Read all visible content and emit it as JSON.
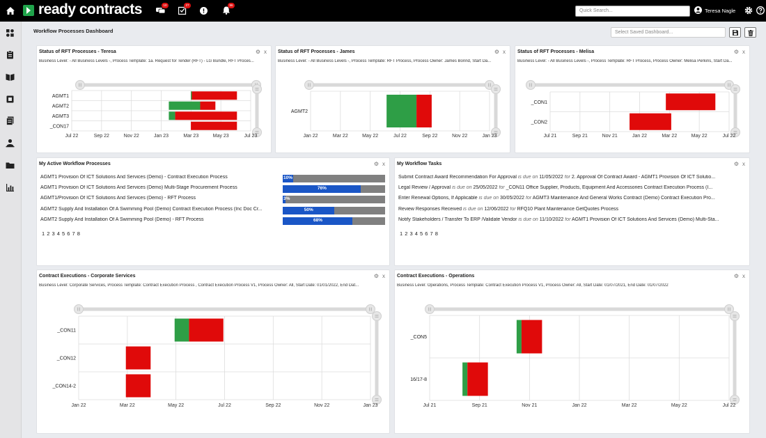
{
  "app": {
    "logo_text": "ready contracts",
    "quick_search_placeholder": "Quick Search...",
    "user_name": "Teresa Nagle",
    "badges": {
      "chat": "10",
      "tasks": "27",
      "alerts": "96"
    }
  },
  "dashboard": {
    "title": "Workflow Processes Dashboard",
    "saved_placeholder": "Select Saved Dashboard..."
  },
  "panels": {
    "teresa": {
      "title": "Status of RFT Processes - Teresa",
      "subtitle": "Business Level: - All Business Levels -, Process Template: 1a. Request for Tender (RFT) - LG Bundle, RFT Proces..."
    },
    "james": {
      "title": "Status of RFT Processes - James",
      "subtitle": "Business Level: - All Business Levels -, Process Template: RFT Process, Process Owner: James Bonnd, Start Da..."
    },
    "melisa": {
      "title": "Status of RFT Processes - Melisa",
      "subtitle": "Business Level: - All Business Levels -, Process Template: RFT Process, Process Owner: Melisa Perkins, Start Da..."
    },
    "active": {
      "title": "My Active Workflow Processes"
    },
    "tasks": {
      "title": "My Workflow Tasks"
    },
    "corp": {
      "title": "Contract Executions - Corporate Services",
      "subtitle": "Business Level: Corporate Services, Process Template: Contract Execution Process , Contract Execution Process V1, Process Owner: All, Start Date: 01/01/2022, End Dat..."
    },
    "ops": {
      "title": "Contract Executions - Operations",
      "subtitle": "Business Level: Operations, Process Template: Contract Execution Process V1, Process Owner: All, Start Date: 01/07/2021, End Date: 01/07/2022"
    }
  },
  "active_processes": [
    {
      "name": "AGMT1 Provision Of ICT Solutions And Services (Demo) - Contract Execution Process",
      "percent": 10,
      "label": "10%"
    },
    {
      "name": "AGMT1 Provision Of ICT Solutions And Services (Demo) Multi-Stage Procurement Process",
      "percent": 76,
      "label": "76%"
    },
    {
      "name": "AGMT1/Provision Of ICT Solutions And Services (Demo) - RFT Process",
      "percent": 3,
      "label": "3%"
    },
    {
      "name": "AGMT2 Supply And Installation Of A Swimming Pool (Demo) Contract Execution Process (Inc Doc Cr...",
      "percent": 50,
      "label": "50%"
    },
    {
      "name": "AGMT2 Supply And Installation Of A Swimming Pool (Demo) - RFT Process",
      "percent": 68,
      "label": "68%"
    }
  ],
  "tasks": [
    {
      "task": "Submit Contract Award Recommendation For Approval",
      "due_word": "is due on",
      "date": "11/05/2022",
      "for_word": "for",
      "item": "2. Approval Of Contract Award - AGMT1 Provision Of ICT Solutio..."
    },
    {
      "task": "Legal Review / Approval",
      "due_word": "is due on",
      "date": "25/05/2022",
      "for_word": "for",
      "item": "_CON11 Office Supplier, Products, Equipment And Accessories Contract Execution Process (I..."
    },
    {
      "task": "Enter Renewal Options, If Applicable",
      "due_word": "is due on",
      "date": "30/05/2022",
      "for_word": "for",
      "item": "AGMT3 Maintenance And General Works Contract (Demo) Contract Execution Pro..."
    },
    {
      "task": "Review Responses Received",
      "due_word": "is due on",
      "date": "12/06/2022",
      "for_word": "for",
      "item": "RFQ10 Plant Maintenance GetQuotes Process"
    },
    {
      "task": "Notify Stakeholders / Transfer To ERP /Validate Vendor",
      "due_word": "is due on",
      "date": "11/10/2022",
      "for_word": "for",
      "item": "AGMT1 Provision Of ICT Solutions And Services (Demo) Multi-Sta..."
    }
  ],
  "pager": {
    "pages": "1 2 3 4 5 6 7 8"
  },
  "colors": {
    "on_track": "#2e9e46",
    "overdue": "#e00a0a",
    "progress": "#1a56c6",
    "remaining": "#808080"
  },
  "chart_data": [
    {
      "id": "teresa",
      "type": "gantt",
      "x_ticks": [
        "Jul 22",
        "Sep 22",
        "Nov 22",
        "Jan 23",
        "Mar 23",
        "May 23",
        "Jul 23"
      ],
      "x_range": [
        "2022-07-01",
        "2023-07-01"
      ],
      "rows": [
        {
          "label": "AGMT1",
          "segments": [
            {
              "start": "2023-03-01",
              "end": "2023-03-03",
              "color": "#2e9e46"
            },
            {
              "start": "2023-03-03",
              "end": "2023-06-03",
              "color": "#e00a0a"
            }
          ]
        },
        {
          "label": "AGMT2",
          "segments": [
            {
              "start": "2023-01-15",
              "end": "2023-03-20",
              "color": "#2e9e46"
            },
            {
              "start": "2023-03-20",
              "end": "2023-04-20",
              "color": "#e00a0a"
            }
          ]
        },
        {
          "label": "AGMT3",
          "segments": [
            {
              "start": "2023-01-15",
              "end": "2023-01-28",
              "color": "#2e9e46"
            },
            {
              "start": "2023-01-28",
              "end": "2023-06-03",
              "color": "#e00a0a"
            }
          ]
        },
        {
          "label": "_CON17",
          "segments": [
            {
              "start": "2023-03-01",
              "end": "2023-06-03",
              "color": "#e00a0a"
            }
          ]
        }
      ]
    },
    {
      "id": "james",
      "type": "gantt",
      "x_ticks": [
        "Jan 22",
        "Mar 22",
        "May 22",
        "Jul 22",
        "Sep 22",
        "Nov 22",
        "Jan 23"
      ],
      "x_range": [
        "2022-01-01",
        "2023-01-01"
      ],
      "rows": [
        {
          "label": "AGMT2",
          "segments": [
            {
              "start": "2022-06-05",
              "end": "2022-08-05",
              "color": "#2e9e46"
            },
            {
              "start": "2022-08-05",
              "end": "2022-09-05",
              "color": "#e00a0a"
            }
          ]
        }
      ]
    },
    {
      "id": "melisa",
      "type": "gantt",
      "x_ticks": [
        "Jul 21",
        "Sep 21",
        "Nov 21",
        "Jan 22",
        "Mar 22",
        "May 22",
        "Jul 22"
      ],
      "x_range": [
        "2021-07-01",
        "2022-07-01"
      ],
      "rows": [
        {
          "label": "_CON1",
          "segments": [
            {
              "start": "2022-02-22",
              "end": "2022-06-03",
              "color": "#e00a0a"
            }
          ]
        },
        {
          "label": "_CON2",
          "segments": [
            {
              "start": "2021-12-10",
              "end": "2022-03-05",
              "color": "#e00a0a"
            }
          ]
        }
      ]
    },
    {
      "id": "corp",
      "type": "gantt",
      "x_ticks": [
        "Jan 22",
        "Mar 22",
        "May 22",
        "Jul 22",
        "Sep 22",
        "Nov 22",
        "Jan 23"
      ],
      "x_range": [
        "2022-01-01",
        "2023-01-01"
      ],
      "rows": [
        {
          "label": "_CON11",
          "segments": [
            {
              "start": "2022-05-01",
              "end": "2022-05-19",
              "color": "#2e9e46"
            },
            {
              "start": "2022-05-19",
              "end": "2022-07-01",
              "color": "#e00a0a"
            }
          ]
        },
        {
          "label": "_CON12",
          "segments": [
            {
              "start": "2022-03-01",
              "end": "2022-04-01",
              "color": "#e00a0a"
            }
          ]
        },
        {
          "label": "_CON14-2",
          "segments": [
            {
              "start": "2022-03-01",
              "end": "2022-04-01",
              "color": "#e00a0a"
            }
          ]
        }
      ]
    },
    {
      "id": "ops",
      "type": "gantt",
      "x_ticks": [
        "Jul 21",
        "Sep 21",
        "Nov 21",
        "Jan 22",
        "Mar 22",
        "May 22",
        "Jul 22"
      ],
      "x_range": [
        "2021-07-01",
        "2022-07-01"
      ],
      "rows": [
        {
          "label": "_CON5",
          "segments": [
            {
              "start": "2021-10-15",
              "end": "2021-10-21",
              "color": "#2e9e46"
            },
            {
              "start": "2021-10-21",
              "end": "2021-11-15",
              "color": "#e00a0a"
            }
          ]
        },
        {
          "label": "16/17-8",
          "segments": [
            {
              "start": "2021-08-10",
              "end": "2021-08-16",
              "color": "#2e9e46"
            },
            {
              "start": "2021-08-16",
              "end": "2021-09-10",
              "color": "#e00a0a"
            }
          ]
        }
      ]
    }
  ]
}
